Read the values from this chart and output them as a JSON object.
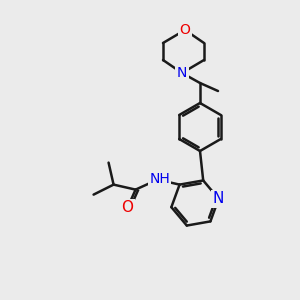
{
  "background_color": "#ebebeb",
  "bond_color": "#1a1a1a",
  "bond_width": 1.8,
  "atom_colors": {
    "N": "#0000ee",
    "O": "#ee0000",
    "C": "#1a1a1a"
  },
  "font_size": 10
}
